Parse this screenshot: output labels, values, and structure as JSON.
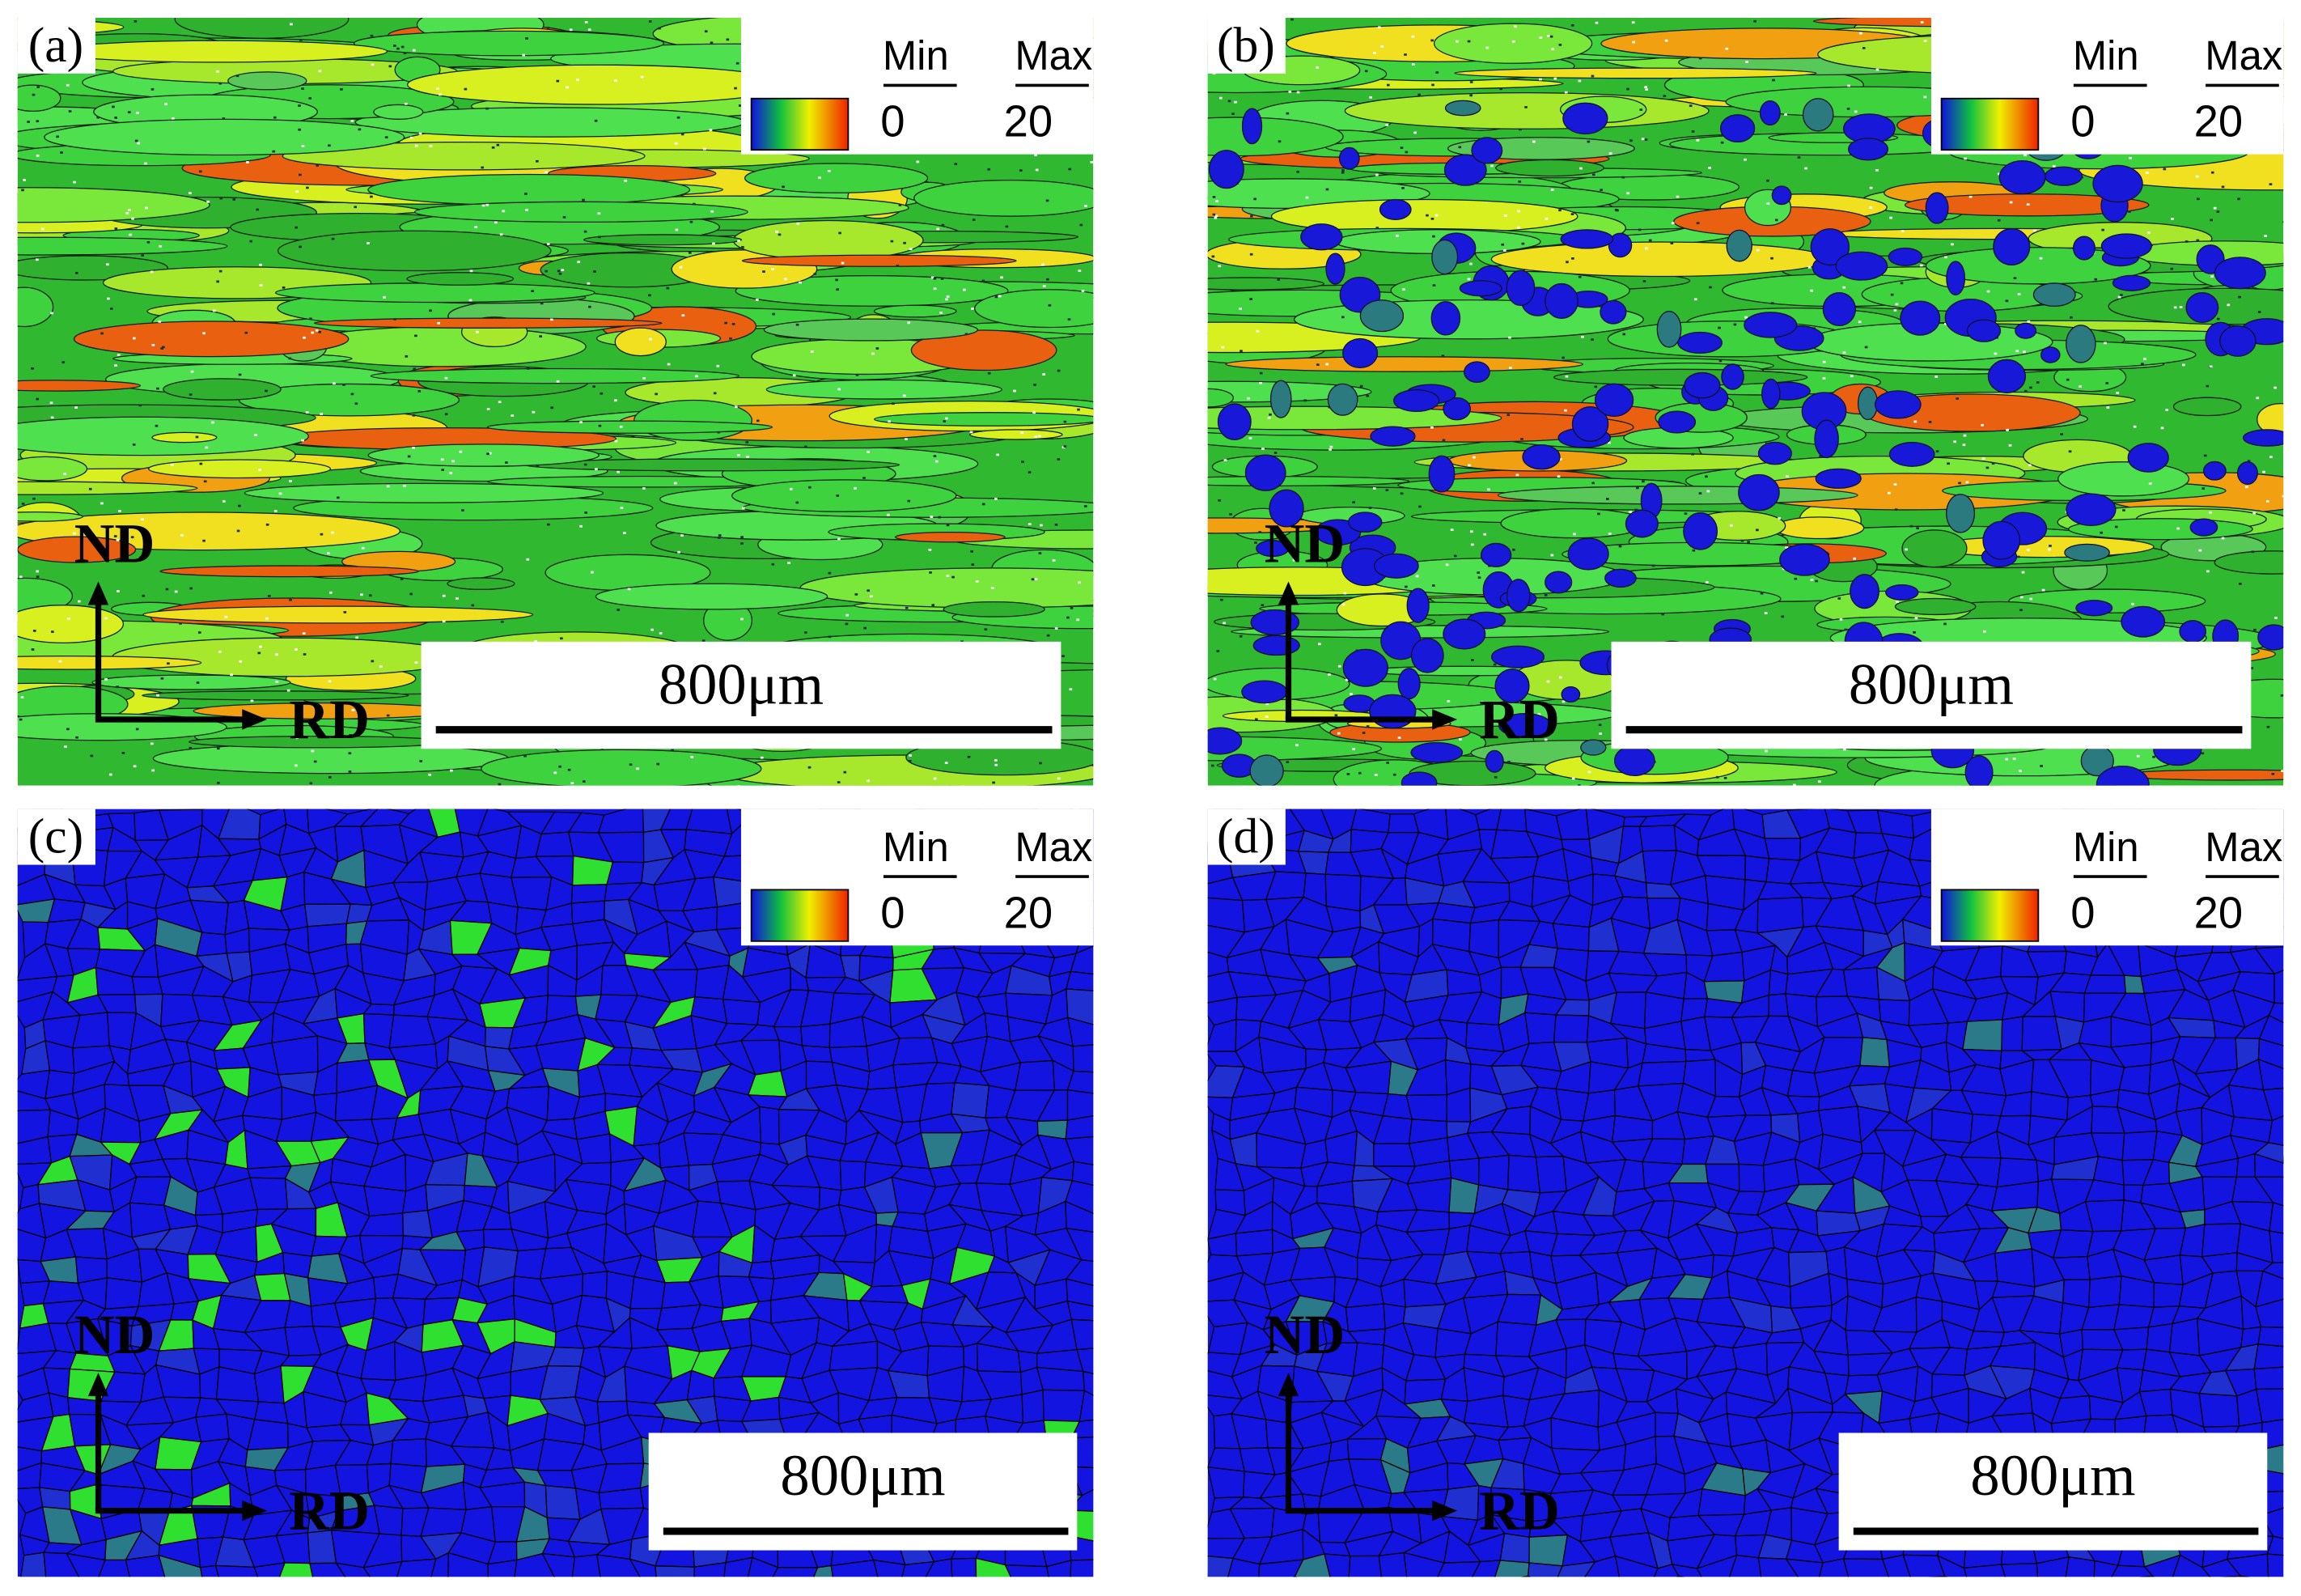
{
  "panels": [
    {
      "label": "(a)",
      "legend": {
        "min_label": "Min",
        "max_label": "Max",
        "min": 0,
        "max": 20
      },
      "scale_bar": "800μm",
      "axes": {
        "y": "ND",
        "x": "RD"
      }
    },
    {
      "label": "(b)",
      "legend": {
        "min_label": "Min",
        "max_label": "Max",
        "min": 0,
        "max": 20
      },
      "scale_bar": "800μm",
      "axes": {
        "y": "ND",
        "x": "RD"
      }
    },
    {
      "label": "(c)",
      "legend": {
        "min_label": "Min",
        "max_label": "Max",
        "min": 0,
        "max": 20
      },
      "scale_bar": "800μm",
      "axes": {
        "y": "ND",
        "x": "RD"
      }
    },
    {
      "label": "(d)",
      "legend": {
        "min_label": "Min",
        "max_label": "Max",
        "min": 0,
        "max": 20
      },
      "scale_bar": "800μm",
      "axes": {
        "y": "ND",
        "x": "RD"
      }
    }
  ]
}
